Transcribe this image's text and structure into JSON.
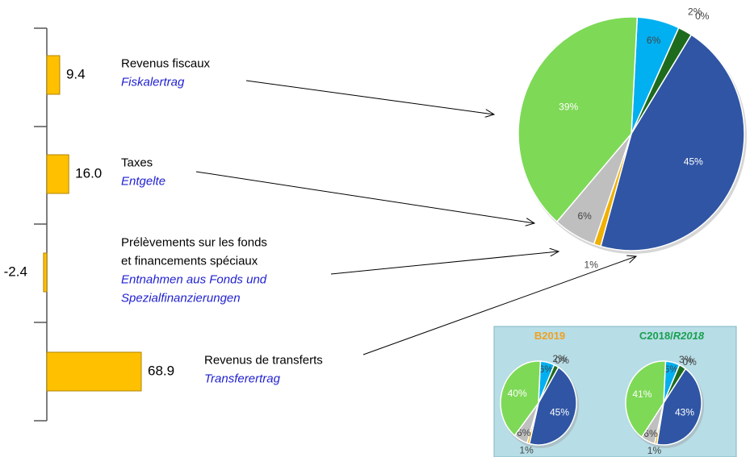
{
  "chart_data": [
    {
      "type": "bar",
      "orientation": "horizontal",
      "categories": [
        [
          "Revenus fiscaux"
        ],
        [
          "Taxes"
        ],
        [
          "Prélèvements sur les fonds",
          "et financements spéciaux"
        ],
        [
          "Revenus de transferts"
        ]
      ],
      "categories_de": [
        [
          "Fiskalertrag"
        ],
        [
          "Entgelte"
        ],
        [
          "Entnahmen aus Fonds und",
          "Spezialfinanzierungen"
        ],
        [
          "Transferertrag"
        ]
      ],
      "values": [
        9.4,
        16.0,
        -2.4,
        68.9
      ],
      "value_labels": [
        "9.4",
        "16.0",
        "-2.4",
        "68.9"
      ],
      "color": "#ffc000"
    },
    {
      "type": "pie",
      "values": [
        6,
        2,
        0,
        45,
        1,
        6,
        39
      ],
      "value_labels": [
        "6%",
        "2%",
        "0%",
        "45%",
        "1%",
        "6%",
        "39%"
      ],
      "colors": [
        "#00b0f0",
        "#1e6b1e",
        "#a6a6a6",
        "#2f55a4",
        "#f0b000",
        "#bfbfbf",
        "#7ed957"
      ]
    },
    {
      "type": "pie",
      "title": [
        "B2019"
      ],
      "title_color": "#f0a020",
      "values": [
        6,
        2,
        0,
        45,
        1,
        6,
        40
      ],
      "value_labels": [
        "6%",
        "2%",
        "0%",
        "45%",
        "1%",
        "6%",
        "40%"
      ],
      "colors": [
        "#00b0f0",
        "#1e6b1e",
        "#a6a6a6",
        "#2f55a4",
        "#f0b000",
        "#bfbfbf",
        "#7ed957"
      ]
    },
    {
      "type": "pie",
      "title": [
        "C2018/",
        "R2018"
      ],
      "title_color": "#1aa050",
      "values": [
        6,
        3,
        0,
        43,
        1,
        6,
        41
      ],
      "value_labels": [
        "6%",
        "3%",
        "0%",
        "43%",
        "1%",
        "6%",
        "41%"
      ],
      "colors": [
        "#00b0f0",
        "#1e6b1e",
        "#a6a6a6",
        "#2f55a4",
        "#f0b000",
        "#bfbfbf",
        "#7ed957"
      ]
    }
  ]
}
